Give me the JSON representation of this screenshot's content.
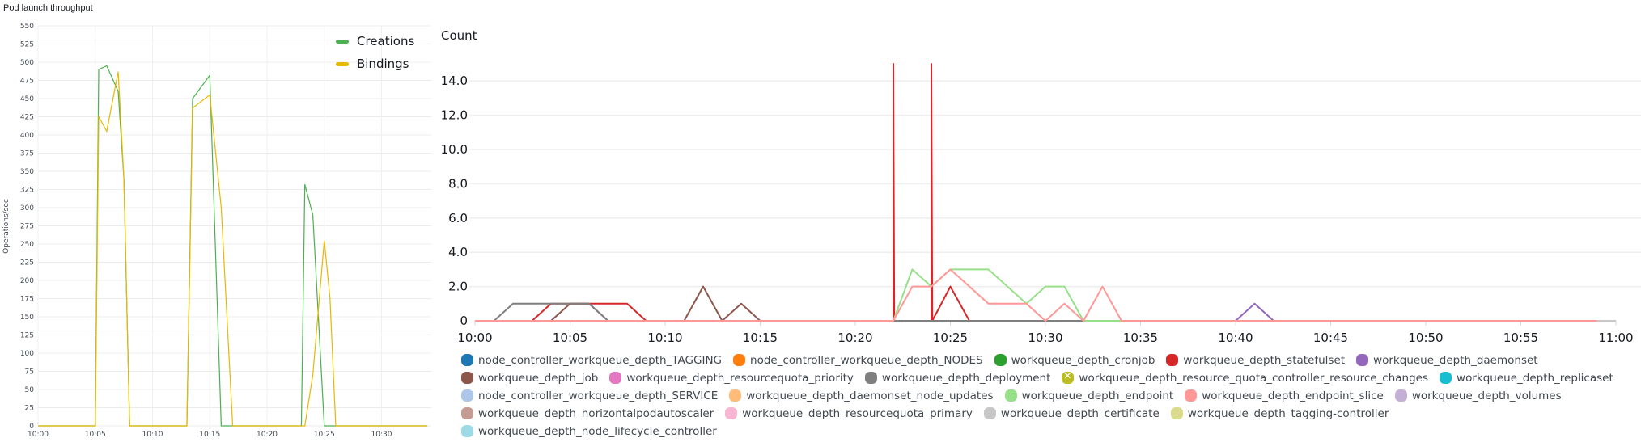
{
  "left": {
    "title": "Pod launch throughput",
    "ylabel": "Operations/sec",
    "legend": [
      {
        "label": "Creations",
        "color": "#4caf50"
      },
      {
        "label": "Bindings",
        "color": "#e6b800"
      }
    ]
  },
  "right": {
    "ylabel": "Count"
  },
  "chart_data": [
    {
      "type": "line",
      "title": "Pod launch throughput",
      "xlabel": "",
      "ylabel": "Operations/sec",
      "ylim": [
        0,
        550
      ],
      "yticks": [
        0,
        25,
        50,
        75,
        100,
        125,
        150,
        175,
        200,
        225,
        250,
        275,
        300,
        325,
        350,
        375,
        400,
        425,
        450,
        475,
        500,
        525,
        550
      ],
      "xticks": [
        "10:00",
        "10:05",
        "10:10",
        "10:15",
        "10:20",
        "10:25",
        "10:30"
      ],
      "grid": true,
      "legend_position": "top-right",
      "x": [
        0,
        1,
        2,
        3,
        4,
        5,
        5.3,
        6,
        7,
        7.5,
        8,
        9,
        10,
        11,
        12,
        13,
        13.5,
        15,
        16,
        17,
        17.3,
        18,
        19,
        20,
        21,
        22,
        23,
        23.3,
        24,
        25,
        25.5,
        26,
        26.5,
        27,
        28,
        29,
        30,
        31,
        32,
        33,
        34
      ],
      "series": [
        {
          "name": "Creations",
          "color": "#4caf50",
          "values": [
            0,
            0,
            0,
            0,
            0,
            0,
            490,
            495,
            460,
            340,
            0,
            0,
            0,
            0,
            0,
            0,
            450,
            482,
            0,
            0,
            0,
            0,
            0,
            0,
            0,
            0,
            0,
            332,
            290,
            0,
            0,
            0,
            0,
            0,
            0,
            0,
            0,
            0,
            0,
            0,
            0
          ]
        },
        {
          "name": "Bindings",
          "color": "#e6b800",
          "values": [
            0,
            0,
            0,
            0,
            0,
            0,
            425,
            405,
            487,
            340,
            0,
            0,
            0,
            0,
            0,
            0,
            437,
            455,
            300,
            0,
            0,
            0,
            0,
            0,
            0,
            0,
            0,
            0,
            70,
            255,
            175,
            0,
            0,
            0,
            0,
            0,
            0,
            0,
            0,
            0,
            0
          ]
        }
      ]
    },
    {
      "type": "line",
      "title": "",
      "xlabel": "",
      "ylabel": "Count",
      "ylim": [
        0,
        15
      ],
      "yticks": [
        "0",
        "2.0",
        "4.0",
        "6.0",
        "8.0",
        "10.0",
        "12.0",
        "14.0"
      ],
      "xticks": [
        "10:00",
        "10:05",
        "10:10",
        "10:15",
        "10:20",
        "10:25",
        "10:30",
        "10:35",
        "10:40",
        "10:45",
        "10:50",
        "10:55",
        "11:00"
      ],
      "grid": true,
      "legend_position": "bottom",
      "series": [
        {
          "name": "node_controller_workqueue_depth_TAGGING",
          "color": "#1f77b4",
          "points": []
        },
        {
          "name": "node_controller_workqueue_depth_NODES",
          "color": "#ff7f0e",
          "points": []
        },
        {
          "name": "workqueue_depth_cronjob",
          "color": "#2ca02c",
          "points": []
        },
        {
          "name": "workqueue_depth_statefulset",
          "color": "#d62728",
          "points": [
            [
              0,
              0
            ],
            [
              3,
              0
            ],
            [
              4,
              1
            ],
            [
              8,
              1
            ],
            [
              9,
              0
            ],
            [
              22,
              0
            ],
            [
              22,
              15
            ],
            [
              22.05,
              0
            ],
            [
              24,
              0
            ],
            [
              24,
              15
            ],
            [
              24.05,
              0
            ],
            [
              25,
              2
            ],
            [
              26,
              0
            ],
            [
              60,
              0
            ]
          ]
        },
        {
          "name": "workqueue_depth_daemonset",
          "color": "#9467bd",
          "points": [
            [
              0,
              0
            ],
            [
              40,
              0
            ],
            [
              41,
              1
            ],
            [
              42,
              0
            ],
            [
              60,
              0
            ]
          ]
        },
        {
          "name": "workqueue_depth_job",
          "color": "#8c564b",
          "points": [
            [
              0,
              0
            ],
            [
              4,
              0
            ],
            [
              5,
              1
            ],
            [
              6,
              1
            ],
            [
              7,
              0
            ],
            [
              11,
              0
            ],
            [
              12,
              2
            ],
            [
              13,
              0
            ],
            [
              14,
              1
            ],
            [
              15,
              0
            ],
            [
              60,
              0
            ]
          ]
        },
        {
          "name": "workqueue_depth_resourcequota_priority",
          "color": "#e377c2",
          "points": []
        },
        {
          "name": "workqueue_depth_deployment",
          "color": "#7f7f7f",
          "points": [
            [
              0,
              0
            ],
            [
              1,
              0
            ],
            [
              2,
              1
            ],
            [
              6,
              1
            ],
            [
              7,
              0
            ],
            [
              60,
              0
            ]
          ]
        },
        {
          "name": "workqueue_depth_resource_quota_controller_resource_changes",
          "color": "#bcbd22",
          "points": []
        },
        {
          "name": "workqueue_depth_replicaset",
          "color": "#17becf",
          "points": []
        },
        {
          "name": "node_controller_workqueue_depth_SERVICE",
          "color": "#aec7e8",
          "points": []
        },
        {
          "name": "workqueue_depth_daemonset_node_updates",
          "color": "#ffbb78",
          "points": []
        },
        {
          "name": "workqueue_depth_endpoint",
          "color": "#98df8a",
          "points": [
            [
              0,
              0
            ],
            [
              22,
              0
            ],
            [
              23,
              3
            ],
            [
              24,
              2
            ],
            [
              25,
              3
            ],
            [
              27,
              3
            ],
            [
              29,
              1
            ],
            [
              30,
              2
            ],
            [
              31,
              2
            ],
            [
              32,
              0
            ],
            [
              60,
              0
            ]
          ]
        },
        {
          "name": "workqueue_depth_endpoint_slice",
          "color": "#ff9896",
          "points": [
            [
              0,
              0
            ],
            [
              22,
              0
            ],
            [
              23,
              2
            ],
            [
              24,
              2
            ],
            [
              25,
              3
            ],
            [
              27,
              1
            ],
            [
              29,
              1
            ],
            [
              30,
              0
            ],
            [
              31,
              1
            ],
            [
              32,
              0
            ],
            [
              33,
              2
            ],
            [
              34,
              0
            ],
            [
              60,
              0
            ]
          ]
        },
        {
          "name": "workqueue_depth_volumes",
          "color": "#c5b0d5",
          "points": []
        },
        {
          "name": "workqueue_depth_horizontalpodautoscaler",
          "color": "#c49c94",
          "points": []
        },
        {
          "name": "workqueue_depth_resourcequota_primary",
          "color": "#f7b6d2",
          "points": []
        },
        {
          "name": "workqueue_depth_certificate",
          "color": "#c7c7c7",
          "points": [
            [
              59,
              0
            ],
            [
              60,
              0
            ]
          ]
        },
        {
          "name": "workqueue_depth_tagging-controller",
          "color": "#dbdb8d",
          "points": []
        },
        {
          "name": "workqueue_depth_node_lifecycle_controller",
          "color": "#9edae5",
          "points": [
            [
              0,
              0
            ],
            [
              59,
              0
            ]
          ]
        }
      ]
    }
  ]
}
